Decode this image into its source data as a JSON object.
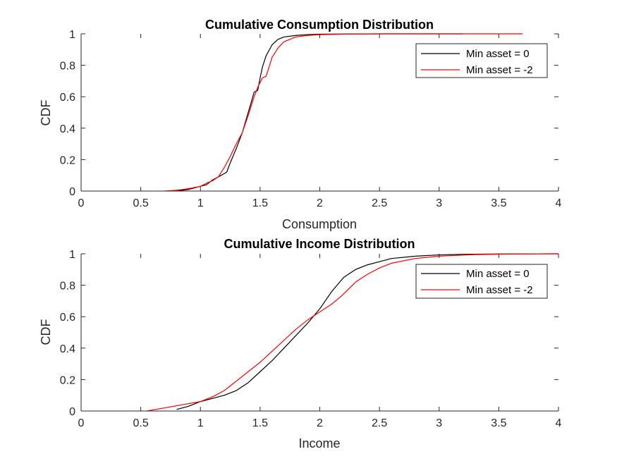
{
  "chart_data": [
    {
      "type": "line",
      "title": "Cumulative Consumption Distribution",
      "xlabel": "Consumption",
      "ylabel": "CDF",
      "xlim": [
        0,
        4
      ],
      "ylim": [
        0,
        1
      ],
      "xticks": [
        0,
        0.5,
        1,
        1.5,
        2,
        2.5,
        3,
        3.5,
        4
      ],
      "yticks": [
        0,
        0.2,
        0.4,
        0.6,
        0.8,
        1
      ],
      "xtick_labels": [
        "0",
        "0.5",
        "1",
        "1.5",
        "2",
        "2.5",
        "3",
        "3.5",
        "4"
      ],
      "ytick_labels": [
        "0",
        "0.2",
        "0.4",
        "0.6",
        "0.8",
        "1"
      ],
      "grid": false,
      "legend_position": "top-right",
      "series": [
        {
          "name": "Min asset = 0",
          "color": "#000000",
          "x": [
            0.8,
            0.9,
            0.95,
            1.0,
            1.05,
            1.1,
            1.15,
            1.22,
            1.25,
            1.3,
            1.35,
            1.4,
            1.42,
            1.45,
            1.48,
            1.5,
            1.52,
            1.55,
            1.6,
            1.65,
            1.7,
            1.8,
            1.9,
            2.0,
            2.2,
            2.5,
            3.0,
            3.2
          ],
          "y": [
            0.0,
            0.01,
            0.02,
            0.03,
            0.04,
            0.07,
            0.09,
            0.12,
            0.18,
            0.27,
            0.37,
            0.5,
            0.55,
            0.63,
            0.64,
            0.72,
            0.79,
            0.86,
            0.93,
            0.965,
            0.98,
            0.99,
            0.995,
            0.998,
            0.999,
            1.0,
            1.0,
            1.0
          ]
        },
        {
          "name": "Min asset = -2",
          "color": "#ff0000",
          "x": [
            0.7,
            0.8,
            0.9,
            1.0,
            1.05,
            1.1,
            1.15,
            1.2,
            1.25,
            1.3,
            1.35,
            1.4,
            1.45,
            1.48,
            1.5,
            1.52,
            1.55,
            1.58,
            1.6,
            1.65,
            1.7,
            1.8,
            1.9,
            2.0,
            2.2,
            2.5,
            3.0,
            3.5,
            3.7
          ],
          "y": [
            0.0,
            0.005,
            0.015,
            0.03,
            0.05,
            0.065,
            0.09,
            0.15,
            0.22,
            0.3,
            0.37,
            0.48,
            0.6,
            0.66,
            0.69,
            0.72,
            0.73,
            0.8,
            0.85,
            0.91,
            0.95,
            0.98,
            0.99,
            0.995,
            0.998,
            1.0,
            1.0,
            1.0,
            1.0
          ]
        }
      ]
    },
    {
      "type": "line",
      "title": "Cumulative Income Distribution",
      "xlabel": "Income",
      "ylabel": "CDF",
      "xlim": [
        0,
        4
      ],
      "ylim": [
        0,
        1
      ],
      "xticks": [
        0,
        0.5,
        1,
        1.5,
        2,
        2.5,
        3,
        3.5,
        4
      ],
      "yticks": [
        0,
        0.2,
        0.4,
        0.6,
        0.8,
        1
      ],
      "xtick_labels": [
        "0",
        "0.5",
        "1",
        "1.5",
        "2",
        "2.5",
        "3",
        "3.5",
        "4"
      ],
      "ytick_labels": [
        "0",
        "0.2",
        "0.4",
        "0.6",
        "0.8",
        "1"
      ],
      "grid": false,
      "legend_position": "top-right",
      "series": [
        {
          "name": "Min asset = 0",
          "color": "#000000",
          "x": [
            0.8,
            0.9,
            1.0,
            1.1,
            1.2,
            1.3,
            1.4,
            1.5,
            1.6,
            1.7,
            1.8,
            1.9,
            2.0,
            2.1,
            2.2,
            2.3,
            2.4,
            2.5,
            2.6,
            2.8,
            3.0,
            3.2,
            3.5,
            4.0
          ],
          "y": [
            0.01,
            0.03,
            0.06,
            0.08,
            0.1,
            0.13,
            0.18,
            0.25,
            0.32,
            0.4,
            0.48,
            0.56,
            0.65,
            0.76,
            0.85,
            0.9,
            0.93,
            0.95,
            0.97,
            0.985,
            0.993,
            0.997,
            0.999,
            1.0
          ]
        },
        {
          "name": "Min asset = -2",
          "color": "#ff0000",
          "x": [
            0.55,
            0.7,
            0.85,
            1.0,
            1.1,
            1.2,
            1.3,
            1.4,
            1.5,
            1.6,
            1.7,
            1.8,
            1.9,
            2.0,
            2.1,
            2.18,
            2.3,
            2.4,
            2.5,
            2.6,
            2.8,
            3.0,
            3.3,
            3.6,
            4.0
          ],
          "y": [
            0.0,
            0.02,
            0.04,
            0.06,
            0.09,
            0.13,
            0.19,
            0.25,
            0.31,
            0.38,
            0.45,
            0.52,
            0.58,
            0.63,
            0.68,
            0.73,
            0.82,
            0.87,
            0.91,
            0.94,
            0.97,
            0.985,
            0.995,
            0.999,
            1.0
          ]
        }
      ]
    }
  ]
}
